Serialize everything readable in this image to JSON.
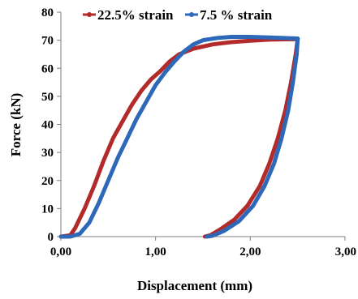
{
  "chart_data": {
    "type": "line",
    "title": "",
    "xlabel": "Displacement (mm)",
    "ylabel": "Force (kN)",
    "xlim": [
      0,
      3
    ],
    "ylim": [
      0,
      80
    ],
    "x_ticks": [
      0,
      1,
      2,
      3
    ],
    "x_tick_labels": [
      "0,00",
      "1,00",
      "2,00",
      "3,00"
    ],
    "y_ticks": [
      0,
      10,
      20,
      30,
      40,
      50,
      60,
      70,
      80
    ],
    "y_tick_labels": [
      "0",
      "10",
      "20",
      "30",
      "40",
      "50",
      "60",
      "70",
      "80"
    ],
    "grid": false,
    "legend_position": "top",
    "series": [
      {
        "name": "22.5% strain",
        "color": "#b22a2a",
        "loading": [
          [
            0,
            0
          ],
          [
            0.1,
            0.5
          ],
          [
            0.15,
            3
          ],
          [
            0.25,
            10
          ],
          [
            0.35,
            18
          ],
          [
            0.45,
            27
          ],
          [
            0.55,
            35
          ],
          [
            0.65,
            41
          ],
          [
            0.75,
            47
          ],
          [
            0.85,
            52
          ],
          [
            0.95,
            56
          ],
          [
            1.05,
            59
          ],
          [
            1.15,
            62.5
          ],
          [
            1.25,
            65
          ],
          [
            1.4,
            67
          ],
          [
            1.6,
            68.5
          ],
          [
            1.8,
            69.3
          ],
          [
            2.0,
            69.8
          ],
          [
            2.2,
            70.2
          ],
          [
            2.5,
            70.4
          ]
        ],
        "unloading": [
          [
            2.5,
            70.4
          ],
          [
            2.48,
            65
          ],
          [
            2.43,
            55
          ],
          [
            2.37,
            45
          ],
          [
            2.29,
            35
          ],
          [
            2.2,
            26
          ],
          [
            2.1,
            18
          ],
          [
            1.97,
            11
          ],
          [
            1.83,
            6
          ],
          [
            1.68,
            2.5
          ],
          [
            1.58,
            0.5
          ],
          [
            1.52,
            0
          ]
        ]
      },
      {
        "name": "7.5 % strain",
        "color": "#2e68b8",
        "loading": [
          [
            0,
            0
          ],
          [
            0.1,
            0
          ],
          [
            0.2,
            1
          ],
          [
            0.3,
            5
          ],
          [
            0.4,
            12
          ],
          [
            0.5,
            20
          ],
          [
            0.6,
            28
          ],
          [
            0.7,
            35
          ],
          [
            0.8,
            42
          ],
          [
            0.9,
            48
          ],
          [
            1.0,
            54
          ],
          [
            1.1,
            58.5
          ],
          [
            1.2,
            62.5
          ],
          [
            1.3,
            66
          ],
          [
            1.4,
            68.5
          ],
          [
            1.5,
            70
          ],
          [
            1.65,
            70.8
          ],
          [
            1.8,
            71.2
          ],
          [
            2.0,
            71.2
          ],
          [
            2.2,
            71
          ],
          [
            2.5,
            70.6
          ]
        ],
        "unloading": [
          [
            2.5,
            70.6
          ],
          [
            2.49,
            65
          ],
          [
            2.45,
            55
          ],
          [
            2.4,
            45
          ],
          [
            2.33,
            35
          ],
          [
            2.25,
            26
          ],
          [
            2.15,
            18
          ],
          [
            2.03,
            11
          ],
          [
            1.88,
            5.5
          ],
          [
            1.72,
            2
          ],
          [
            1.6,
            0.3
          ],
          [
            1.54,
            0
          ]
        ]
      }
    ]
  }
}
